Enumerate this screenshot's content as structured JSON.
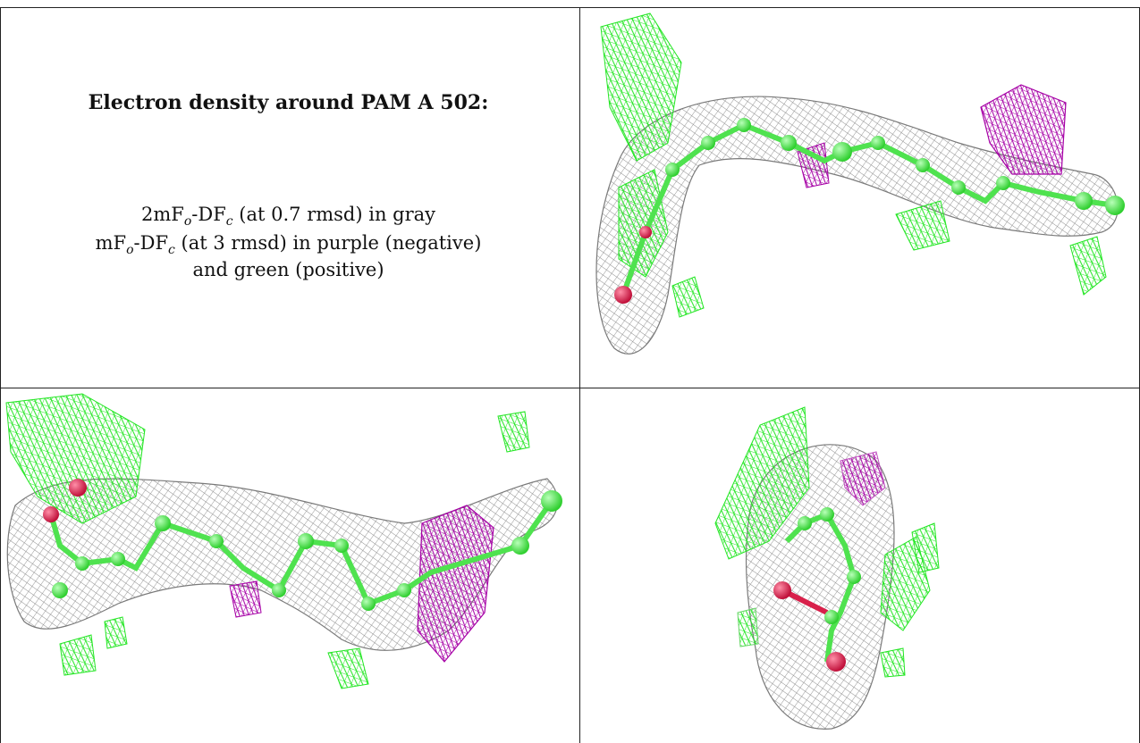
{
  "caption": {
    "title": "Electron density around PAM A 502:",
    "line1_prefix": "2mF",
    "line1_sub1": "o",
    "line1_mid": "-DF",
    "line1_sub2": "c",
    "line1_suffix": " (at 0.7 rmsd) in gray",
    "line2_prefix": "mF",
    "line2_sub1": "o",
    "line2_mid": "-DF",
    "line2_sub2": "c",
    "line2_suffix": " (at 3 rmsd) in purple (negative)",
    "line3": "and green (positive)"
  },
  "colors": {
    "mesh_gray": "#9a9a9a",
    "mesh_green": "#33ee33",
    "mesh_purple": "#b000b0",
    "atom_green": "#5ef05e",
    "atom_red": "#d8204a",
    "border": "#222222"
  },
  "panels": [
    {
      "id": "top-right",
      "view": "side view 1"
    },
    {
      "id": "bottom-left",
      "view": "side view 2"
    },
    {
      "id": "bottom-right",
      "view": "end-on view"
    }
  ]
}
